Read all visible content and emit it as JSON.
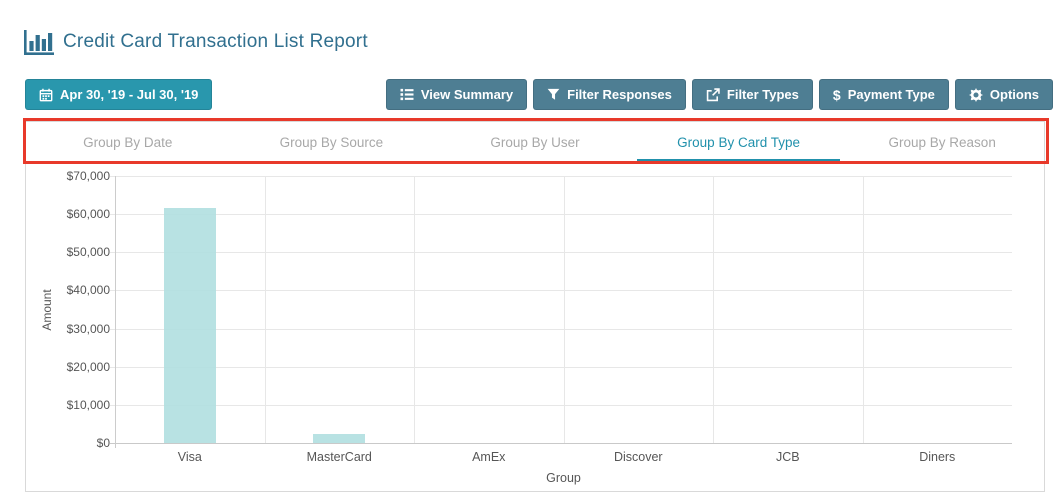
{
  "header": {
    "title": "Credit Card Transaction List Report",
    "icon": "bar-chart-icon",
    "color": "#31708f"
  },
  "toolbar": {
    "date_button": {
      "label": "Apr 30, '19 - Jul 30, '19",
      "icon": "calendar-icon",
      "bg": "#2997ad"
    },
    "button_bg": "#4e7e93",
    "buttons": [
      {
        "label": "View Summary",
        "icon": "list-icon"
      },
      {
        "label": "Filter Responses",
        "icon": "funnel-icon"
      },
      {
        "label": "Filter Types",
        "icon": "external-link-icon"
      },
      {
        "label": "Payment Type",
        "icon": "dollar-icon",
        "icon_glyph": "$"
      },
      {
        "label": "Options",
        "icon": "gear-icon"
      }
    ]
  },
  "tabs": {
    "active_color": "#2191ac",
    "inactive_color": "#a8a8a8",
    "items": [
      {
        "label": "Group By Date",
        "active": false
      },
      {
        "label": "Group By Source",
        "active": false
      },
      {
        "label": "Group By User",
        "active": false
      },
      {
        "label": "Group By Card Type",
        "active": true
      },
      {
        "label": "Group By Reason",
        "active": false
      }
    ]
  },
  "annotation": {
    "type": "highlight-box",
    "color": "#e8392a"
  },
  "chart_data": {
    "type": "bar",
    "categories": [
      "Visa",
      "MasterCard",
      "AmEx",
      "Discover",
      "JCB",
      "Diners"
    ],
    "values": [
      61600,
      2400,
      0,
      0,
      0,
      0
    ],
    "title": "",
    "xlabel": "Group",
    "ylabel": "Amount",
    "ylim": [
      0,
      70000
    ],
    "ytick_step": 10000,
    "ytick_prefix": "$",
    "bar_color": "#b2dfe1",
    "grid": true,
    "legend": "none"
  }
}
